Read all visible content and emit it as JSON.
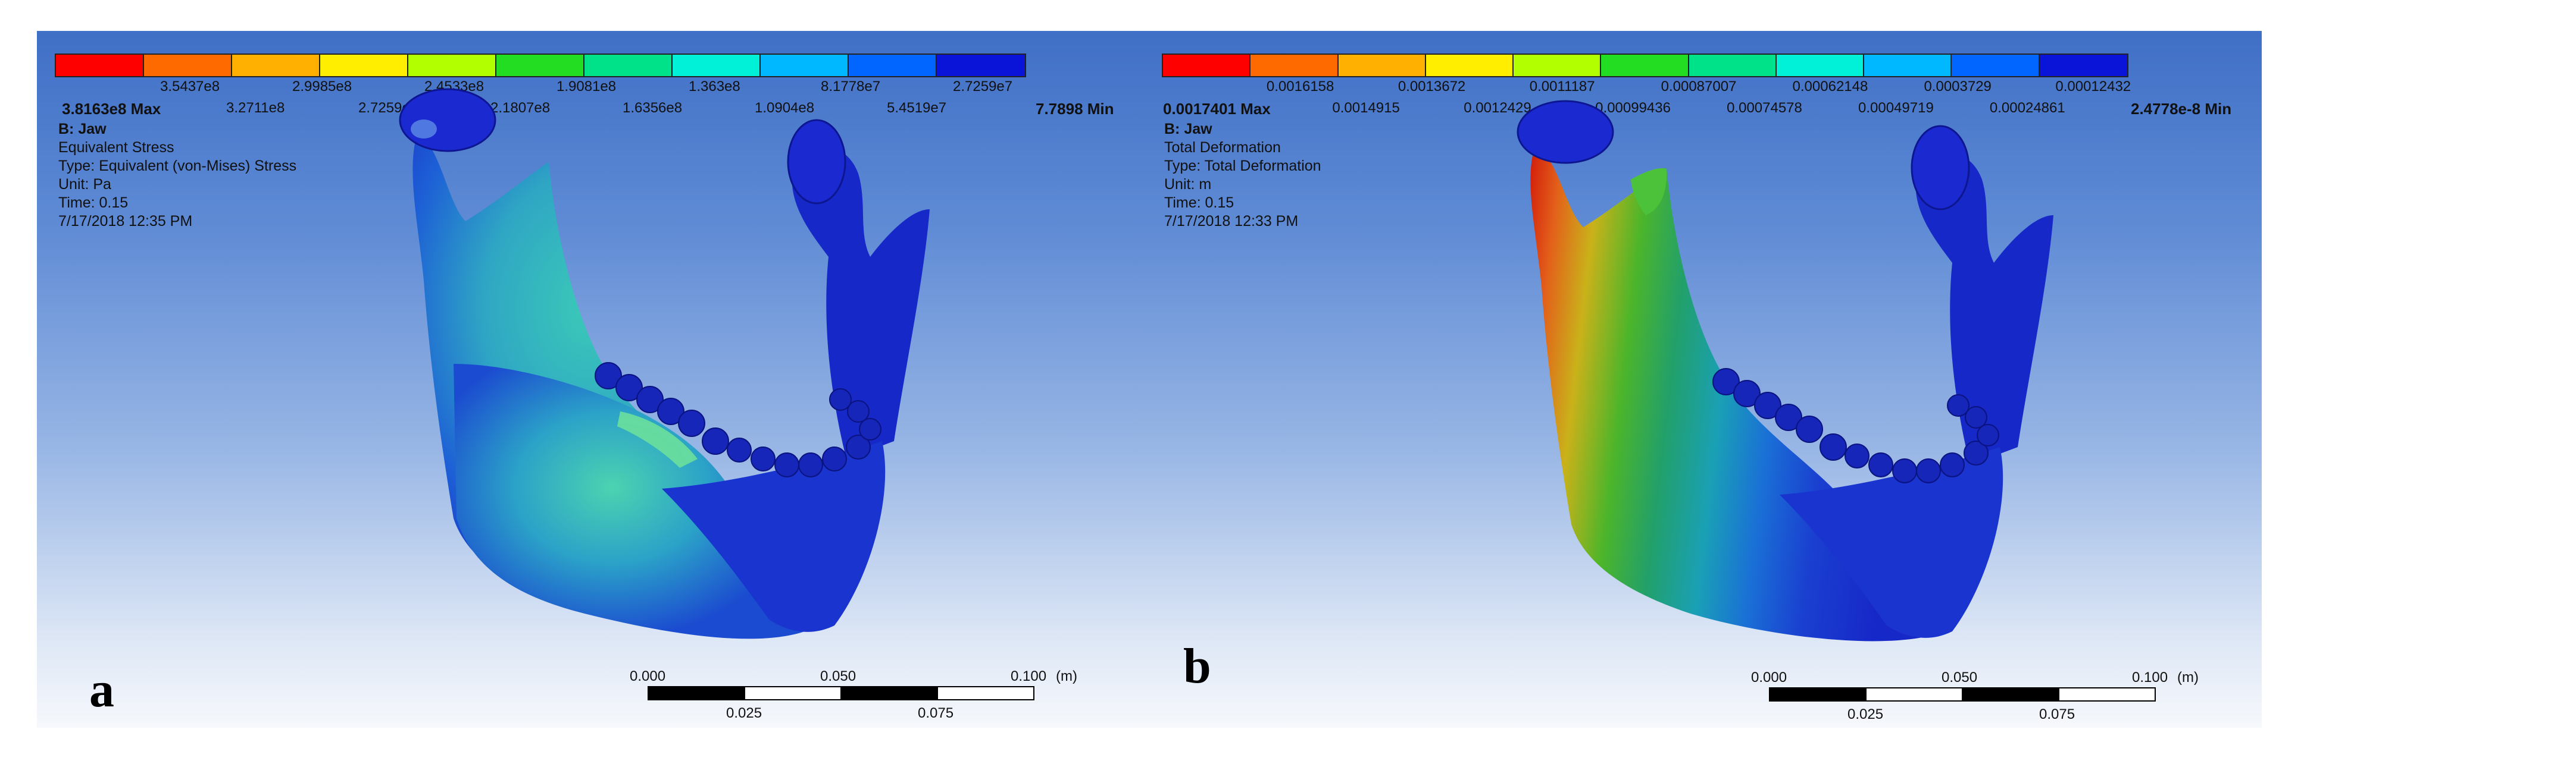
{
  "colorscale": [
    "#ff0000",
    "#ff6a00",
    "#ffb000",
    "#ffee00",
    "#b2ff00",
    "#22dd22",
    "#00e28a",
    "#00f0d8",
    "#00b8ff",
    "#0066ff",
    "#0a14d8"
  ],
  "panel_a": {
    "letter": "a",
    "legend_top": [
      "3.5437e8",
      "2.9985e8",
      "2.4533e8",
      "1.9081e8",
      "1.363e8",
      "8.1778e7",
      "2.7259e7"
    ],
    "legend_bottom": [
      "3.2711e8",
      "2.7259e8",
      "2.1807e8",
      "1.6356e8",
      "1.0904e8",
      "5.4519e7"
    ],
    "legend_max": "3.8163e8 Max",
    "legend_min": "7.7898 Min",
    "info_title": "B: Jaw",
    "info_lines": [
      "Equivalent Stress",
      "Type: Equivalent (von-Mises) Stress",
      "Unit: Pa",
      "Time: 0.15",
      "7/17/2018 12:35 PM"
    ],
    "scale_top": [
      "0.000",
      "0.050",
      "0.100"
    ],
    "scale_unit": "(m)",
    "scale_bottom": [
      "0.025",
      "0.075"
    ]
  },
  "panel_b": {
    "letter": "b",
    "legend_top": [
      "0.0016158",
      "0.0013672",
      "0.0011187",
      "0.00087007",
      "0.00062148",
      "0.0003729",
      "0.00012432"
    ],
    "legend_bottom": [
      "0.0014915",
      "0.0012429",
      "0.00099436",
      "0.00074578",
      "0.00049719",
      "0.00024861"
    ],
    "legend_max": "0.0017401 Max",
    "legend_min": "2.4778e-8 Min",
    "info_title": "B: Jaw",
    "info_lines": [
      "Total Deformation",
      "Type: Total Deformation",
      "Unit: m",
      "Time: 0.15",
      "7/17/2018 12:33 PM"
    ],
    "scale_top": [
      "0.000",
      "0.050",
      "0.100"
    ],
    "scale_unit": "(m)",
    "scale_bottom": [
      "0.025",
      "0.075"
    ]
  }
}
